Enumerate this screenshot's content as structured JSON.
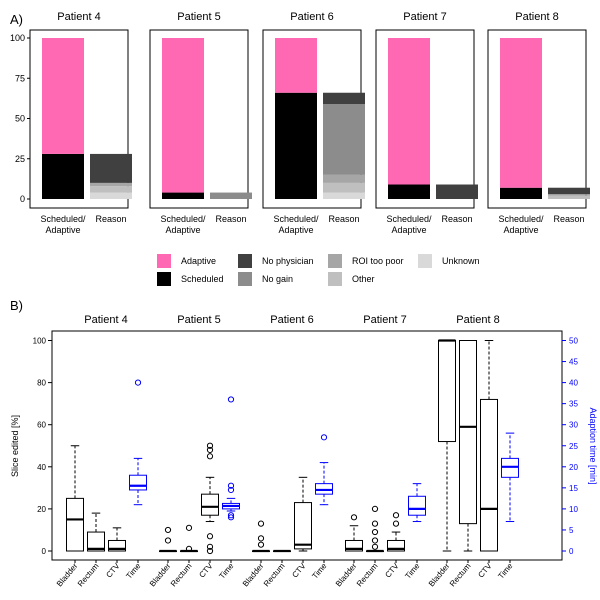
{
  "panel_labels": {
    "a": "A)",
    "b": "B)"
  },
  "legend": [
    {
      "label": "Adaptive",
      "color": "#ff69b4"
    },
    {
      "label": "Scheduled",
      "color": "#000000"
    },
    {
      "label": "No physician",
      "color": "#404040"
    },
    {
      "label": "No gain",
      "color": "#8c8c8c"
    },
    {
      "label": "ROI too poor",
      "color": "#a6a6a6"
    },
    {
      "label": "Other",
      "color": "#bfbfbf"
    },
    {
      "label": "Unknown",
      "color": "#d9d9d9"
    }
  ],
  "chart_data": [
    {
      "type": "bar",
      "panel": "A",
      "stacked": true,
      "ylim": [
        0,
        100
      ],
      "y_ticks": [
        "0",
        "25",
        "50",
        "75",
        "100"
      ],
      "x_tick_labels": [
        "Scheduled/\nAdaptive",
        "Reason"
      ],
      "facets": [
        {
          "title": "Patient 4",
          "scheduled_adaptive": {
            "Scheduled": 28,
            "Adaptive": 72
          },
          "reason": {
            "Unknown": 4,
            "Other": 4,
            "ROI too poor": 2,
            "No gain": 0,
            "No physician": 18
          }
        },
        {
          "title": "Patient 5",
          "scheduled_adaptive": {
            "Scheduled": 4,
            "Adaptive": 96
          },
          "reason": {
            "Unknown": 0,
            "Other": 0,
            "ROI too poor": 0,
            "No gain": 4,
            "No physician": 0
          }
        },
        {
          "title": "Patient 6",
          "scheduled_adaptive": {
            "Scheduled": 66,
            "Adaptive": 34
          },
          "reason": {
            "Unknown": 4,
            "Other": 6,
            "ROI too poor": 5,
            "No gain": 44,
            "No physician": 7
          }
        },
        {
          "title": "Patient 7",
          "scheduled_adaptive": {
            "Scheduled": 9,
            "Adaptive": 91
          },
          "reason": {
            "Unknown": 0,
            "Other": 0,
            "ROI too poor": 0,
            "No gain": 0,
            "No physician": 9
          }
        },
        {
          "title": "Patient 8",
          "scheduled_adaptive": {
            "Scheduled": 7,
            "Adaptive": 93
          },
          "reason": {
            "Unknown": 0,
            "Other": 2,
            "ROI too poor": 1,
            "No gain": 0,
            "No physician": 4
          }
        }
      ]
    },
    {
      "type": "box",
      "panel": "B",
      "ylabel": "Slice edited [%]",
      "ylim": [
        0,
        100
      ],
      "y_ticks": [
        "0",
        "20",
        "40",
        "60",
        "80",
        "100"
      ],
      "y2label": "Adaption time [min]",
      "y2lim": [
        0,
        50
      ],
      "y2_ticks": [
        "0",
        "5",
        "10",
        "15",
        "20",
        "25",
        "30",
        "35",
        "40",
        "45",
        "50"
      ],
      "categories": [
        "Bladder",
        "Rectum",
        "CTV",
        "Time"
      ],
      "series_colors": {
        "slices": "#000000",
        "time": "#0000ff"
      },
      "facets": [
        {
          "title": "Patient 4",
          "boxes": [
            {
              "category": "Bladder",
              "min": 0,
              "q1": 0,
              "median": 15,
              "q3": 25,
              "max": 50,
              "outliers": []
            },
            {
              "category": "Rectum",
              "min": 0,
              "q1": 0,
              "median": 1,
              "q3": 9,
              "max": 18,
              "outliers": []
            },
            {
              "category": "CTV",
              "min": 0,
              "q1": 0,
              "median": 1,
              "q3": 5,
              "max": 11,
              "outliers": []
            },
            {
              "category": "Time",
              "min": 11,
              "q1": 14.5,
              "median": 15.5,
              "q3": 18,
              "max": 22,
              "outliers": [
                40
              ]
            }
          ]
        },
        {
          "title": "Patient 5",
          "boxes": [
            {
              "category": "Bladder",
              "min": 0,
              "q1": 0,
              "median": 0,
              "q3": 0,
              "max": 0,
              "outliers": [
                5,
                10
              ]
            },
            {
              "category": "Rectum",
              "min": 0,
              "q1": 0,
              "median": 0,
              "q3": 0,
              "max": 0,
              "outliers": [
                1,
                11
              ]
            },
            {
              "category": "CTV",
              "min": 14,
              "q1": 17,
              "median": 21,
              "q3": 27,
              "max": 35,
              "outliers": [
                0,
                2,
                7,
                45,
                48,
                50
              ]
            },
            {
              "category": "Time",
              "min": 9.5,
              "q1": 10,
              "median": 10.7,
              "q3": 11.3,
              "max": 12.5,
              "outliers": [
                8,
                8.5,
                14.5,
                15.5,
                36
              ]
            }
          ]
        },
        {
          "title": "Patient 6",
          "boxes": [
            {
              "category": "Bladder",
              "min": 0,
              "q1": 0,
              "median": 0,
              "q3": 0,
              "max": 0,
              "outliers": [
                3,
                6,
                13
              ]
            },
            {
              "category": "Rectum",
              "min": 0,
              "q1": 0,
              "median": 0,
              "q3": 0,
              "max": 0,
              "outliers": []
            },
            {
              "category": "CTV",
              "min": 0,
              "q1": 1,
              "median": 3,
              "q3": 23,
              "max": 35,
              "outliers": []
            },
            {
              "category": "Time",
              "min": 11,
              "q1": 13.5,
              "median": 14.5,
              "q3": 16,
              "max": 21,
              "outliers": [
                27
              ]
            }
          ]
        },
        {
          "title": "Patient 7",
          "boxes": [
            {
              "category": "Bladder",
              "min": 0,
              "q1": 0,
              "median": 1,
              "q3": 5,
              "max": 12,
              "outliers": [
                16
              ]
            },
            {
              "category": "Rectum",
              "min": 0,
              "q1": 0,
              "median": 0,
              "q3": 0,
              "max": 0,
              "outliers": [
                2,
                5,
                9,
                13,
                20
              ]
            },
            {
              "category": "CTV",
              "min": 0,
              "q1": 0,
              "median": 1,
              "q3": 5,
              "max": 9,
              "outliers": [
                13,
                17
              ]
            },
            {
              "category": "Time",
              "min": 7,
              "q1": 8.5,
              "median": 10,
              "q3": 13,
              "max": 16,
              "outliers": []
            }
          ]
        },
        {
          "title": "Patient 8",
          "boxes": [
            {
              "category": "Bladder",
              "min": 0,
              "q1": 52,
              "median": 100,
              "q3": 100,
              "max": 100,
              "outliers": []
            },
            {
              "category": "Rectum",
              "min": 0,
              "q1": 13,
              "median": 59,
              "q3": 100,
              "max": 100,
              "outliers": []
            },
            {
              "category": "CTV",
              "min": 0,
              "q1": 0,
              "median": 20,
              "q3": 72,
              "max": 100,
              "outliers": []
            },
            {
              "category": "Time",
              "min": 7,
              "q1": 17.5,
              "median": 20,
              "q3": 22,
              "max": 28,
              "outliers": []
            }
          ]
        }
      ]
    }
  ]
}
